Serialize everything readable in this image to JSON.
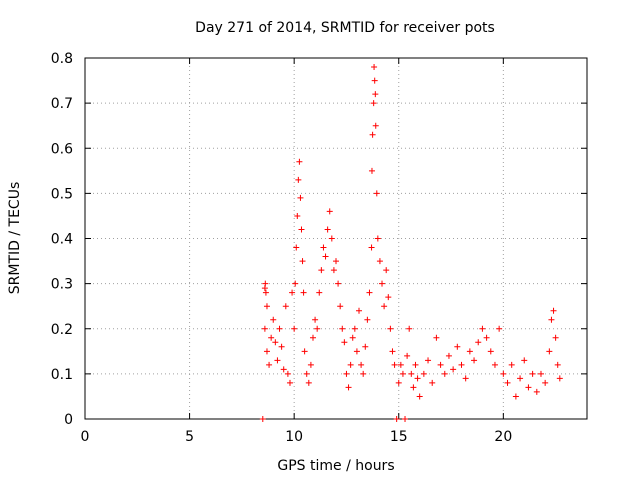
{
  "chart_data": {
    "type": "scatter",
    "title": "Day 271 of 2014, SRMTID for receiver pots",
    "xlabel": "GPS time / hours",
    "ylabel": "SRMTID / TECUs",
    "xlim": [
      0,
      24
    ],
    "ylim": [
      0,
      0.8
    ],
    "xticks": [
      "0",
      "5",
      "10",
      "15",
      "20"
    ],
    "xtick_values": [
      0,
      5,
      10,
      15,
      20
    ],
    "yticks": [
      "0",
      "0.1",
      "0.2",
      "0.3",
      "0.4",
      "0.5",
      "0.6",
      "0.7",
      "0.8"
    ],
    "ytick_values": [
      0,
      0.1,
      0.2,
      0.3,
      0.4,
      0.5,
      0.6,
      0.7,
      0.8
    ],
    "grid": true,
    "marker": "+",
    "color": "#ff0000",
    "series": [
      {
        "name": "SRMTID",
        "points": [
          [
            8.5,
            0.0
          ],
          [
            8.6,
            0.29
          ],
          [
            8.62,
            0.3
          ],
          [
            8.65,
            0.28
          ],
          [
            8.7,
            0.25
          ],
          [
            8.6,
            0.2
          ],
          [
            8.7,
            0.15
          ],
          [
            8.8,
            0.12
          ],
          [
            8.9,
            0.18
          ],
          [
            9.0,
            0.22
          ],
          [
            9.1,
            0.17
          ],
          [
            9.2,
            0.13
          ],
          [
            9.3,
            0.2
          ],
          [
            9.4,
            0.16
          ],
          [
            9.5,
            0.11
          ],
          [
            9.6,
            0.25
          ],
          [
            9.7,
            0.1
          ],
          [
            9.8,
            0.08
          ],
          [
            9.9,
            0.28
          ],
          [
            10.0,
            0.2
          ],
          [
            10.05,
            0.3
          ],
          [
            10.1,
            0.38
          ],
          [
            10.15,
            0.45
          ],
          [
            10.2,
            0.53
          ],
          [
            10.25,
            0.57
          ],
          [
            10.3,
            0.49
          ],
          [
            10.35,
            0.42
          ],
          [
            10.4,
            0.35
          ],
          [
            10.45,
            0.28
          ],
          [
            10.5,
            0.15
          ],
          [
            10.6,
            0.1
          ],
          [
            10.7,
            0.08
          ],
          [
            10.8,
            0.12
          ],
          [
            10.9,
            0.18
          ],
          [
            11.0,
            0.22
          ],
          [
            11.1,
            0.2
          ],
          [
            11.2,
            0.28
          ],
          [
            11.3,
            0.33
          ],
          [
            11.4,
            0.38
          ],
          [
            11.5,
            0.36
          ],
          [
            11.6,
            0.42
          ],
          [
            11.7,
            0.46
          ],
          [
            11.8,
            0.4
          ],
          [
            11.9,
            0.33
          ],
          [
            12.0,
            0.35
          ],
          [
            12.1,
            0.3
          ],
          [
            12.2,
            0.25
          ],
          [
            12.3,
            0.2
          ],
          [
            12.4,
            0.17
          ],
          [
            12.5,
            0.1
          ],
          [
            12.6,
            0.07
          ],
          [
            12.7,
            0.12
          ],
          [
            12.8,
            0.18
          ],
          [
            12.9,
            0.2
          ],
          [
            13.0,
            0.15
          ],
          [
            13.1,
            0.24
          ],
          [
            13.2,
            0.12
          ],
          [
            13.3,
            0.1
          ],
          [
            13.4,
            0.16
          ],
          [
            13.5,
            0.22
          ],
          [
            13.6,
            0.28
          ],
          [
            13.7,
            0.38
          ],
          [
            13.72,
            0.55
          ],
          [
            13.75,
            0.63
          ],
          [
            13.8,
            0.7
          ],
          [
            13.82,
            0.78
          ],
          [
            13.85,
            0.75
          ],
          [
            13.88,
            0.72
          ],
          [
            13.9,
            0.65
          ],
          [
            13.95,
            0.5
          ],
          [
            14.0,
            0.4
          ],
          [
            14.1,
            0.35
          ],
          [
            14.2,
            0.3
          ],
          [
            14.3,
            0.25
          ],
          [
            14.4,
            0.33
          ],
          [
            14.5,
            0.27
          ],
          [
            14.6,
            0.2
          ],
          [
            14.7,
            0.15
          ],
          [
            14.8,
            0.12
          ],
          [
            14.9,
            0.0
          ],
          [
            15.0,
            0.08
          ],
          [
            15.1,
            0.12
          ],
          [
            15.2,
            0.1
          ],
          [
            15.3,
            0.0
          ],
          [
            15.4,
            0.14
          ],
          [
            15.5,
            0.2
          ],
          [
            15.6,
            0.1
          ],
          [
            15.7,
            0.07
          ],
          [
            15.8,
            0.12
          ],
          [
            15.9,
            0.09
          ],
          [
            16.0,
            0.05
          ],
          [
            16.2,
            0.1
          ],
          [
            16.4,
            0.13
          ],
          [
            16.6,
            0.08
          ],
          [
            16.8,
            0.18
          ],
          [
            17.0,
            0.12
          ],
          [
            17.2,
            0.1
          ],
          [
            17.4,
            0.14
          ],
          [
            17.6,
            0.11
          ],
          [
            17.8,
            0.16
          ],
          [
            18.0,
            0.12
          ],
          [
            18.2,
            0.09
          ],
          [
            18.4,
            0.15
          ],
          [
            18.6,
            0.13
          ],
          [
            18.8,
            0.17
          ],
          [
            19.0,
            0.2
          ],
          [
            19.2,
            0.18
          ],
          [
            19.4,
            0.15
          ],
          [
            19.6,
            0.12
          ],
          [
            19.8,
            0.2
          ],
          [
            20.0,
            0.1
          ],
          [
            20.2,
            0.08
          ],
          [
            20.4,
            0.12
          ],
          [
            20.6,
            0.05
          ],
          [
            20.8,
            0.09
          ],
          [
            21.0,
            0.13
          ],
          [
            21.2,
            0.07
          ],
          [
            21.4,
            0.1
          ],
          [
            21.6,
            0.06
          ],
          [
            21.8,
            0.1
          ],
          [
            22.0,
            0.08
          ],
          [
            22.2,
            0.15
          ],
          [
            22.3,
            0.22
          ],
          [
            22.4,
            0.24
          ],
          [
            22.5,
            0.18
          ],
          [
            22.6,
            0.12
          ],
          [
            22.7,
            0.09
          ]
        ]
      }
    ]
  }
}
